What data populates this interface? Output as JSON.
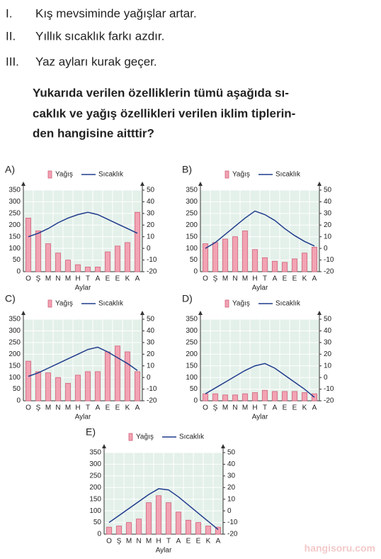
{
  "statements": [
    {
      "number": "I.",
      "text": "Kış mevsiminde yağışlar artar."
    },
    {
      "number": "II.",
      "text": "Yıllık sıcaklık farkı azdır."
    },
    {
      "number": "III.",
      "text": "Yaz ayları kurak geçer."
    }
  ],
  "question": [
    "Yukarıda verilen özelliklerin tümü aşağıda sı-",
    "caklık ve yağış özellikleri verilen iklim tiplerin-",
    "den hangisine aitttir?"
  ],
  "watermark": "hangisoru.com",
  "chart_data": [
    {
      "type": "combo",
      "label": "A)",
      "x_label": "Aylar",
      "categories": [
        "O",
        "Ş",
        "M",
        "N",
        "M",
        "H",
        "T",
        "A",
        "E",
        "E",
        "K",
        "A"
      ],
      "series": [
        {
          "name": "Yağış",
          "kind": "bar",
          "color": "#f2a3b3",
          "values": [
            230,
            175,
            120,
            80,
            50,
            30,
            20,
            20,
            85,
            110,
            125,
            255
          ]
        },
        {
          "name": "Sıcaklık",
          "kind": "line",
          "axis": "y2",
          "color": "#1f3b8c",
          "values": [
            10,
            13,
            17,
            22,
            26,
            29,
            31,
            29,
            25,
            21,
            17,
            13
          ]
        }
      ],
      "ylim": [
        0,
        350
      ],
      "yticks": [
        0,
        50,
        100,
        150,
        200,
        250,
        300,
        350
      ],
      "y2lim": [
        -20,
        50
      ],
      "y2ticks": [
        -20,
        -10,
        0,
        10,
        20,
        30,
        40,
        50
      ],
      "grid": true
    },
    {
      "type": "combo",
      "label": "B)",
      "x_label": "Aylar",
      "categories": [
        "O",
        "Ş",
        "M",
        "N",
        "M",
        "H",
        "T",
        "A",
        "E",
        "E",
        "K",
        "A"
      ],
      "series": [
        {
          "name": "Yağış",
          "kind": "bar",
          "color": "#f2a3b3",
          "values": [
            120,
            125,
            140,
            150,
            175,
            95,
            60,
            45,
            40,
            55,
            80,
            105
          ]
        },
        {
          "name": "Sıcaklık",
          "kind": "line",
          "axis": "y2",
          "color": "#1f3b8c",
          "values": [
            0,
            5,
            12,
            19,
            26,
            32,
            29,
            24,
            17,
            11,
            6,
            2
          ]
        }
      ],
      "ylim": [
        0,
        350
      ],
      "yticks": [
        0,
        50,
        100,
        150,
        200,
        250,
        300,
        350
      ],
      "y2lim": [
        -20,
        50
      ],
      "y2ticks": [
        -20,
        -10,
        0,
        10,
        20,
        30,
        40,
        50
      ],
      "grid": true
    },
    {
      "type": "combo",
      "label": "C)",
      "x_label": "Aylar",
      "categories": [
        "O",
        "Ş",
        "M",
        "N",
        "M",
        "H",
        "T",
        "A",
        "E",
        "E",
        "K",
        "A"
      ],
      "series": [
        {
          "name": "Yağış",
          "kind": "bar",
          "color": "#f2a3b3",
          "values": [
            170,
            125,
            120,
            100,
            75,
            110,
            125,
            125,
            210,
            235,
            210,
            125
          ]
        },
        {
          "name": "Sıcaklık",
          "kind": "line",
          "axis": "y2",
          "color": "#1f3b8c",
          "values": [
            1,
            4,
            8,
            12,
            16,
            20,
            24,
            26,
            22,
            17,
            12,
            6
          ]
        }
      ],
      "ylim": [
        0,
        350
      ],
      "yticks": [
        0,
        50,
        100,
        150,
        200,
        250,
        300,
        350
      ],
      "y2lim": [
        -20,
        50
      ],
      "y2ticks": [
        -20,
        -10,
        0,
        10,
        20,
        30,
        40,
        50
      ],
      "grid": true
    },
    {
      "type": "combo",
      "label": "D)",
      "x_label": "Aylar",
      "categories": [
        "O",
        "Ş",
        "M",
        "N",
        "M",
        "H",
        "T",
        "A",
        "E",
        "E",
        "K",
        "A"
      ],
      "series": [
        {
          "name": "Yağış",
          "kind": "bar",
          "color": "#f2a3b3",
          "values": [
            30,
            30,
            25,
            25,
            30,
            35,
            45,
            40,
            40,
            40,
            35,
            30
          ]
        },
        {
          "name": "Sıcaklık",
          "kind": "line",
          "axis": "y2",
          "color": "#1f3b8c",
          "values": [
            -14,
            -9,
            -4,
            1,
            6,
            10,
            12,
            8,
            2,
            -4,
            -10,
            -17
          ]
        }
      ],
      "ylim": [
        0,
        350
      ],
      "yticks": [
        0,
        50,
        100,
        150,
        200,
        250,
        300,
        350
      ],
      "y2lim": [
        -20,
        50
      ],
      "y2ticks": [
        -20,
        -10,
        0,
        10,
        20,
        30,
        40,
        50
      ],
      "grid": true
    },
    {
      "type": "combo",
      "label": "E)",
      "x_label": "Aylar",
      "categories": [
        "O",
        "Ş",
        "M",
        "N",
        "M",
        "H",
        "T",
        "A",
        "E",
        "E",
        "K",
        "A"
      ],
      "series": [
        {
          "name": "Yağış",
          "kind": "bar",
          "color": "#f2a3b3",
          "values": [
            30,
            35,
            50,
            65,
            135,
            165,
            135,
            95,
            60,
            50,
            35,
            30
          ]
        },
        {
          "name": "Sıcaklık",
          "kind": "line",
          "axis": "y2",
          "color": "#1f3b8c",
          "values": [
            -10,
            -4,
            2,
            8,
            14,
            19,
            18,
            12,
            5,
            -2,
            -9,
            -16
          ]
        }
      ],
      "ylim": [
        0,
        350
      ],
      "yticks": [
        0,
        50,
        100,
        150,
        200,
        250,
        300,
        350
      ],
      "y2lim": [
        -20,
        50
      ],
      "y2ticks": [
        -20,
        -10,
        0,
        10,
        20,
        30,
        40,
        50
      ],
      "grid": true
    }
  ]
}
